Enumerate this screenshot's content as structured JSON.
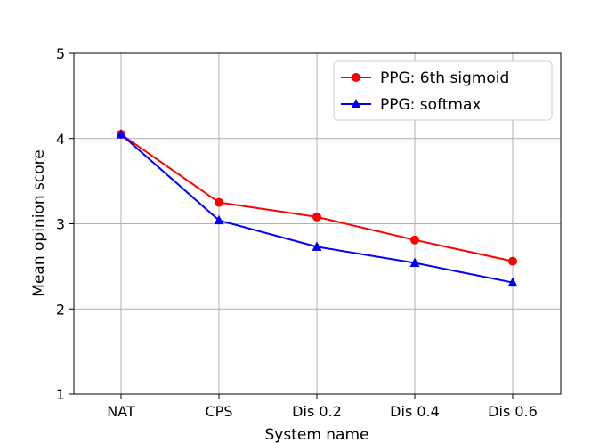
{
  "chart_data": {
    "type": "line",
    "title": "",
    "xlabel": "System name",
    "ylabel": "Mean opinion score",
    "categories": [
      "NAT",
      "CPS",
      "Dis 0.2",
      "Dis 0.4",
      "Dis 0.6"
    ],
    "ylim": [
      1,
      5
    ],
    "yticks": [
      "1",
      "2",
      "3",
      "4",
      "5"
    ],
    "grid": true,
    "legend_position": "top-right",
    "series": [
      {
        "name": "PPG: 6th sigmoid",
        "color": "#ff0000",
        "marker": "circle",
        "values": [
          4.05,
          3.25,
          3.08,
          2.81,
          2.56
        ]
      },
      {
        "name": "PPG: softmax",
        "color": "#0000ff",
        "marker": "triangle",
        "values": [
          4.05,
          3.04,
          2.73,
          2.54,
          2.31
        ]
      }
    ]
  }
}
